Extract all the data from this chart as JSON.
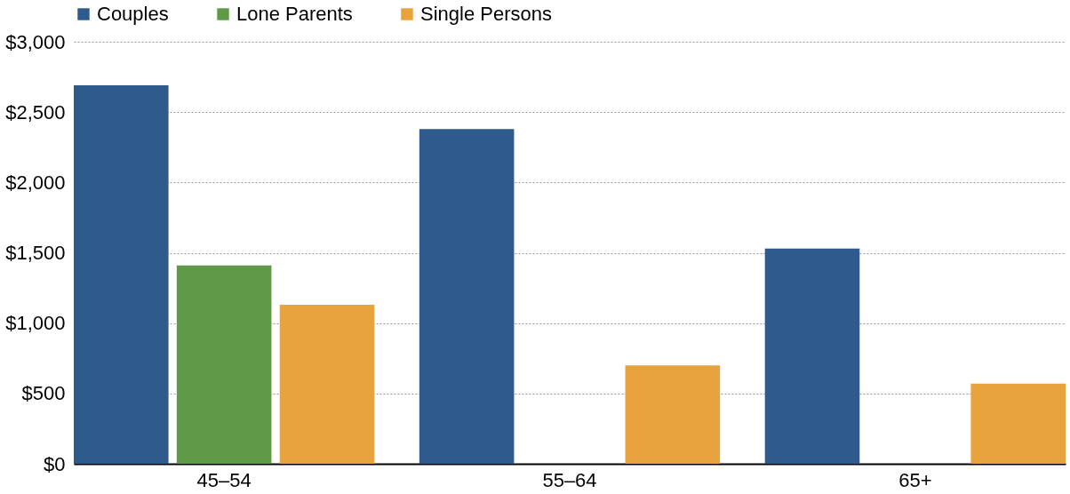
{
  "chart_data": {
    "type": "bar",
    "categories": [
      "45–54",
      "55–64",
      "65+"
    ],
    "series": [
      {
        "name": "Couples",
        "color": "#2e5a8c",
        "values": [
          2690,
          2380,
          1530
        ]
      },
      {
        "name": "Lone Parents",
        "color": "#5e9a48",
        "values": [
          1410,
          null,
          null
        ]
      },
      {
        "name": "Single Persons",
        "color": "#e8a33c",
        "values": [
          1130,
          700,
          570
        ]
      }
    ],
    "ylim": [
      0,
      3000
    ],
    "yticks": [
      {
        "value": 0,
        "label": "$0"
      },
      {
        "value": 500,
        "label": "$500"
      },
      {
        "value": 1000,
        "label": "$1,000"
      },
      {
        "value": 1500,
        "label": "$1,500"
      },
      {
        "value": 2000,
        "label": "$2,000"
      },
      {
        "value": 2500,
        "label": "$2,500"
      },
      {
        "value": 3000,
        "label": "$3,000"
      }
    ],
    "grid": "y",
    "legend": "top"
  }
}
